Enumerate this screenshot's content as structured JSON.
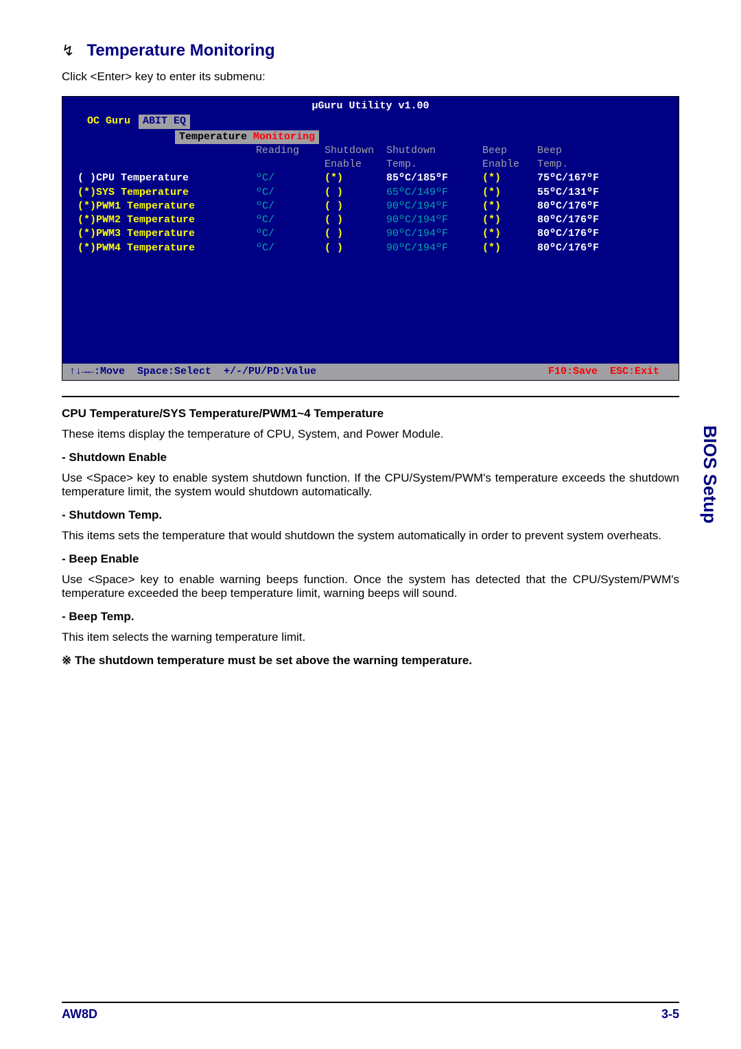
{
  "heading": {
    "arrow": "↯",
    "title": "Temperature Monitoring"
  },
  "intro": "Click <Enter> key to enter its submenu:",
  "bios": {
    "title": "µGuru Utility v1.00",
    "tab_main": "OC Guru",
    "tab_active": "ABIT EQ",
    "subtab_a": "Temperature",
    "subtab_b": "Monitoring",
    "head": {
      "reading": "Reading",
      "sd_en": "Shutdown",
      "sd_en2": "Enable",
      "sd_t": "Shutdown",
      "sd_t2": "Temp.",
      "bp_en": "Beep",
      "bp_en2": "Enable",
      "bp_t": "Beep",
      "bp_t2": "Temp."
    },
    "rows": [
      {
        "mark": "( )",
        "sel": true,
        "name": "CPU Temperature",
        "reading": "ºC/",
        "sde": "(*)",
        "sdt": "85ºC/185ºF",
        "bpe": "(*)",
        "bpt": "75ºC/167ºF"
      },
      {
        "mark": "(*)",
        "sel": false,
        "name": "SYS Temperature",
        "reading": "ºC/",
        "sde": "(  )",
        "sdt": "65ºC/149ºF",
        "bpe": "(*)",
        "bpt": "55ºC/131ºF"
      },
      {
        "mark": "(*)",
        "sel": false,
        "name": "PWM1 Temperature",
        "reading": "ºC/",
        "sde": "(  )",
        "sdt": "90ºC/194ºF",
        "bpe": "(*)",
        "bpt": "80ºC/176ºF"
      },
      {
        "mark": "(*)",
        "sel": false,
        "name": "PWM2 Temperature",
        "reading": "ºC/",
        "sde": "(  )",
        "sdt": "90ºC/194ºF",
        "bpe": "(*)",
        "bpt": "80ºC/176ºF"
      },
      {
        "mark": "(*)",
        "sel": false,
        "name": "PWM3 Temperature",
        "reading": "ºC/",
        "sde": "(  )",
        "sdt": "90ºC/194ºF",
        "bpe": "(*)",
        "bpt": "80ºC/176ºF"
      },
      {
        "mark": "(*)",
        "sel": false,
        "name": "PWM4 Temperature",
        "reading": "ºC/",
        "sde": "(  )",
        "sdt": "90ºC/194ºF",
        "bpe": "(*)",
        "bpt": "80ºC/176ºF"
      }
    ],
    "footer": {
      "move": "↑↓→←:Move",
      "select": "Space:Select",
      "value": "+/-/PU/PD:Value",
      "save": "F10:Save",
      "exit": "ESC:Exit"
    }
  },
  "doc": {
    "h1": "CPU Temperature/SYS Temperature/PWM1~4 Temperature",
    "p1": "These items display the temperature of CPU, System, and Power Module.",
    "d1": "-   Shutdown Enable",
    "p2": "Use <Space> key to enable system shutdown function. If the CPU/System/PWM's temperature exceeds the shutdown temperature limit, the system would shutdown automatically.",
    "d2": "-   Shutdown Temp.",
    "p3": "This items sets the temperature that would shutdown the system automatically in order to prevent system overheats.",
    "d3": "-   Beep Enable",
    "p4": "Use <Space> key to enable warning beeps function. Once the system has detected that the CPU/System/PWM's temperature exceeded the beep temperature limit, warning beeps will sound.",
    "d4": "-   Beep Temp.",
    "p5": "This item selects the warning temperature limit.",
    "note": "※  The shutdown temperature must be set above the warning temperature."
  },
  "side": "BIOS Setup",
  "footer": {
    "left": "AW8D",
    "right": "3-5"
  }
}
